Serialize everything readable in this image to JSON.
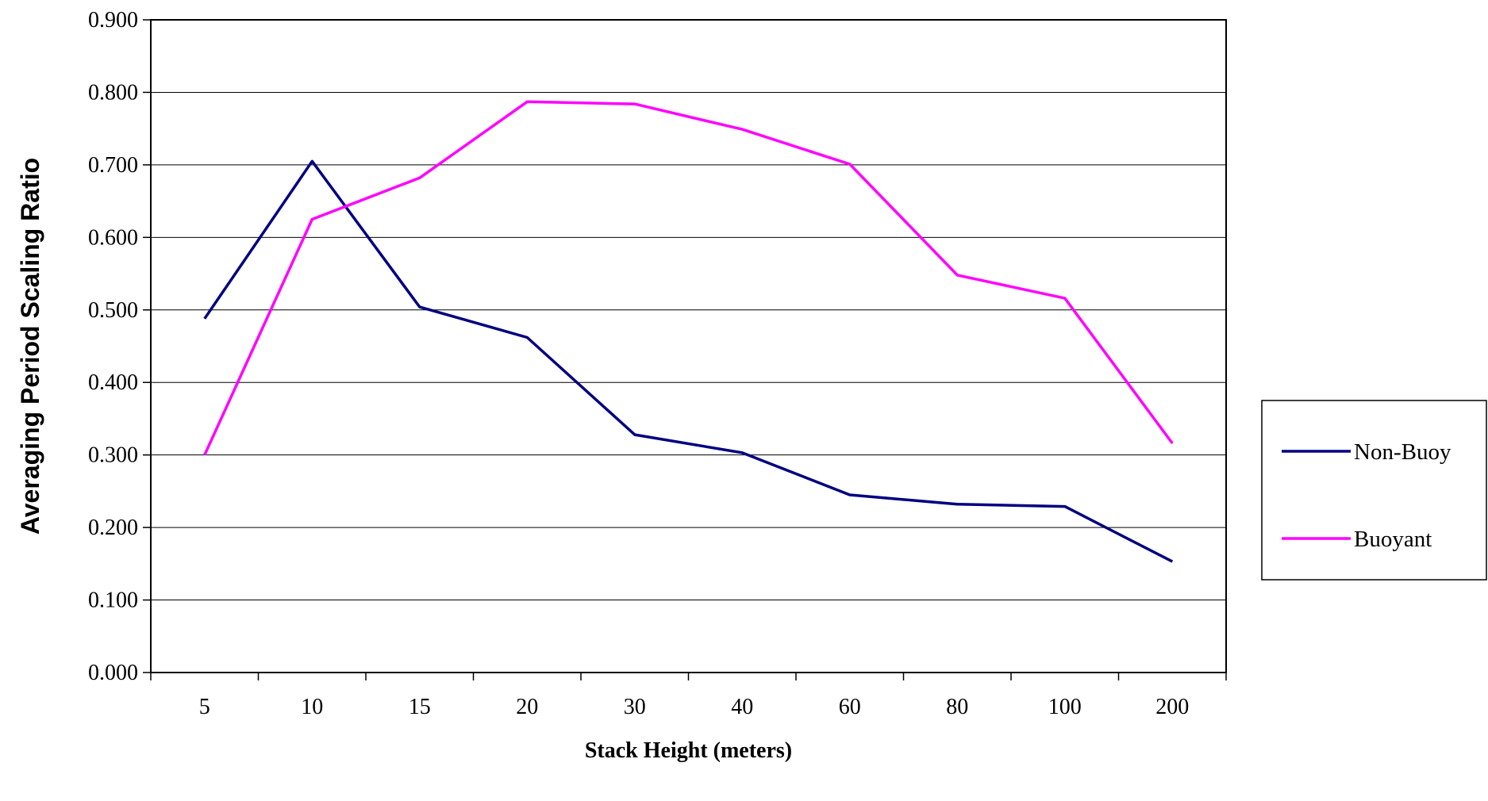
{
  "chart_data": {
    "type": "line",
    "xlabel": "Stack Height (meters)",
    "ylabel": "Averaging Period Scaling Ratio",
    "categories": [
      "5",
      "10",
      "15",
      "20",
      "30",
      "40",
      "60",
      "80",
      "100",
      "200"
    ],
    "y_ticks": [
      "0.000",
      "0.100",
      "0.200",
      "0.300",
      "0.400",
      "0.500",
      "0.600",
      "0.700",
      "0.800",
      "0.900"
    ],
    "ylim": [
      0,
      0.9
    ],
    "grid": "horizontal",
    "legend_position": "right",
    "series": [
      {
        "name": "Non-Buoy",
        "color": "#000080",
        "values": [
          0.488,
          0.705,
          0.504,
          0.462,
          0.328,
          0.303,
          0.245,
          0.232,
          0.229,
          0.153
        ]
      },
      {
        "name": "Buoyant",
        "color": "#ff00ff",
        "values": [
          0.3,
          0.625,
          0.682,
          0.787,
          0.784,
          0.749,
          0.701,
          0.548,
          0.516,
          0.316
        ]
      }
    ]
  }
}
